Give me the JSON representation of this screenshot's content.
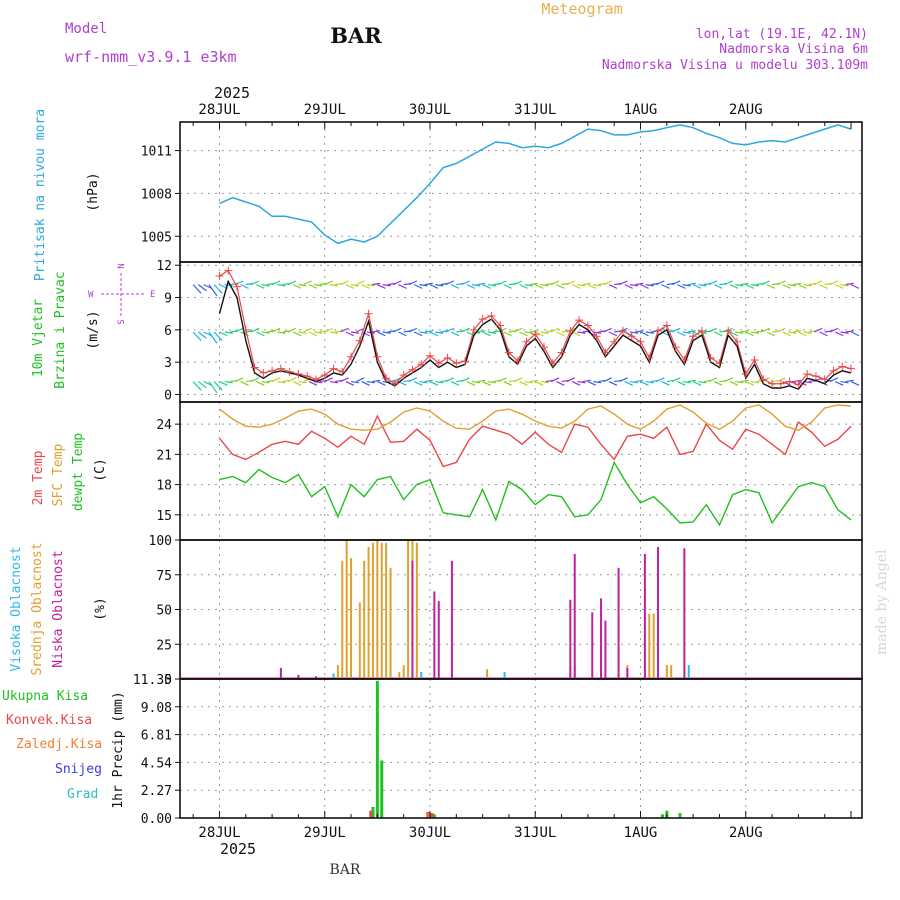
{
  "header": {
    "model_label": "Model",
    "model_name": "wrf-nmm_v3.9.1  e3km",
    "title": "BAR",
    "subtitle": "Meteogram",
    "coords": "lon,lat (19.1E, 42.1N)",
    "altitude": "Nadmorska Visina 6m",
    "model_altitude": "Nadmorska Visina u modelu 303.109m",
    "footer": "BAR",
    "watermark": "made by Angel"
  },
  "time_axis": {
    "year": "2025",
    "labels": [
      "28JUL",
      "29JUL",
      "30JUL",
      "31JUL",
      "1AUG",
      "2AUG"
    ]
  },
  "colors": {
    "pressure": "#2aa8e0",
    "wind_label": "#20c020",
    "wind_label2": "#20c020",
    "temp2m": "#e84848",
    "sfc_temp": "#e0a030",
    "dewpt": "#20c020",
    "cloud_high": "#30b8e8",
    "cloud_mid": "#e0a030",
    "cloud_low": "#c020a0",
    "precip_total": "#20c020",
    "precip_conv": "#e84848",
    "precip_frozen": "#f08030",
    "snow": "#4040e0",
    "graupel": "#30c0c0",
    "header_purple": "#b040d0",
    "subtitle": "#e8b050"
  },
  "panels": {
    "pressure": {
      "label": "Pritisak na nivou mora",
      "unit": "(hPa)"
    },
    "wind": {
      "label1": "10m Vjetar",
      "label2": "Brzina i Pravac",
      "unit": "(m/s)",
      "compass": {
        "n": "N",
        "e": "E",
        "s": "S",
        "w": "W"
      }
    },
    "temp": {
      "label1": "2m Temp",
      "label2": "SFC Temp",
      "label3": "dewpt Temp",
      "unit": "(C)"
    },
    "cloud": {
      "label1": "Visoka Oblacnost",
      "label2": "Srednja Oblacnost",
      "label3": "Niska Oblacnost",
      "unit": "(%)"
    },
    "precip": {
      "label1": "Ukupna Kisa",
      "label2": "Konvek.Kisa",
      "label3": "Zaledj.Kisa",
      "label4": "Snijeg",
      "label5": "Grad",
      "unit": "1hr Precip (mm)"
    }
  },
  "chart_data": [
    {
      "type": "line",
      "name": "pressure",
      "title": "Pritisak na nivou mora",
      "ylabel": "(hPa)",
      "ylim": [
        1003.2,
        1013.0
      ],
      "yticks": [
        1005,
        1008,
        1011
      ],
      "x_hours": [
        0,
        3,
        6,
        9,
        12,
        15,
        18,
        21,
        24,
        27,
        30,
        33,
        36,
        39,
        42,
        45,
        48,
        51,
        54,
        57,
        60,
        63,
        66,
        69,
        72,
        75,
        78,
        81,
        84,
        87,
        90,
        93,
        96,
        99,
        102,
        105,
        108,
        111,
        114,
        117,
        120,
        123,
        126,
        129,
        132,
        135,
        138,
        141,
        144
      ],
      "values": [
        1007.3,
        1007.7,
        1007.4,
        1007.1,
        1006.4,
        1006.4,
        1006.2,
        1006.0,
        1005.1,
        1004.5,
        1004.8,
        1004.6,
        1005.0,
        1005.9,
        1006.8,
        1007.7,
        1008.7,
        1009.8,
        1010.1,
        1010.6,
        1011.1,
        1011.6,
        1011.5,
        1011.2,
        1011.3,
        1011.2,
        1011.5,
        1012.0,
        1012.5,
        1012.4,
        1012.1,
        1012.1,
        1012.3,
        1012.4,
        1012.6,
        1012.8,
        1012.6,
        1012.2,
        1011.9,
        1011.5,
        1011.4,
        1011.6,
        1011.7,
        1011.6,
        1011.9,
        1012.2,
        1012.5,
        1012.8,
        1012.5
      ]
    },
    {
      "type": "line",
      "name": "wind",
      "title": "10m Vjetar Brzina i Pravac",
      "ylabel": "(m/s)",
      "ylim": [
        -0.7,
        12.3
      ],
      "yticks": [
        0,
        3,
        6,
        9,
        12
      ],
      "x_hours": [
        0,
        2,
        4,
        6,
        8,
        10,
        12,
        14,
        16,
        18,
        20,
        22,
        24,
        26,
        28,
        30,
        32,
        34,
        36,
        38,
        40,
        42,
        44,
        46,
        48,
        50,
        52,
        54,
        56,
        58,
        60,
        62,
        64,
        66,
        68,
        70,
        72,
        74,
        76,
        78,
        80,
        82,
        84,
        86,
        88,
        90,
        92,
        94,
        96,
        98,
        100,
        102,
        104,
        106,
        108,
        110,
        112,
        114,
        116,
        118,
        120,
        122,
        124,
        126,
        128,
        130,
        132,
        134,
        136,
        138,
        140,
        142,
        144
      ],
      "series": [
        {
          "name": "speed",
          "values": [
            7.5,
            10.5,
            9.0,
            5.0,
            2.0,
            1.5,
            2.0,
            2.2,
            2.0,
            1.8,
            1.5,
            1.2,
            1.5,
            2.0,
            1.8,
            2.8,
            4.5,
            6.8,
            3.0,
            1.2,
            0.8,
            1.5,
            2.0,
            2.5,
            3.2,
            2.5,
            3.0,
            2.5,
            2.8,
            5.5,
            6.5,
            7.0,
            6.0,
            3.5,
            2.8,
            4.5,
            5.2,
            4.0,
            2.5,
            3.5,
            5.5,
            6.5,
            6.0,
            5.0,
            3.5,
            4.5,
            5.5,
            5.0,
            4.5,
            3.0,
            5.5,
            6.0,
            4.0,
            2.8,
            5.0,
            5.5,
            3.0,
            2.5,
            5.5,
            4.5,
            1.5,
            2.8,
            1.0,
            0.6,
            0.6,
            0.8,
            0.5,
            1.5,
            1.3,
            1.0,
            1.8,
            2.2,
            2.0
          ]
        },
        {
          "name": "gust",
          "values": [
            11.0,
            11.5,
            10.0,
            6.0,
            2.5,
            2.0,
            2.2,
            2.4,
            2.1,
            1.9,
            1.7,
            1.4,
            1.8,
            2.4,
            2.1,
            3.5,
            5.0,
            7.5,
            3.5,
            1.5,
            1.0,
            1.8,
            2.3,
            2.8,
            3.6,
            2.9,
            3.4,
            2.9,
            3.1,
            6.0,
            7.0,
            7.3,
            6.4,
            3.9,
            3.1,
            4.9,
            5.6,
            4.4,
            2.9,
            3.9,
            5.9,
            6.9,
            6.4,
            5.4,
            3.9,
            4.9,
            5.9,
            5.4,
            4.9,
            3.4,
            5.9,
            6.4,
            4.4,
            3.2,
            5.4,
            5.9,
            3.4,
            2.9,
            5.9,
            4.9,
            1.9,
            3.2,
            1.4,
            1.0,
            1.0,
            1.2,
            0.9,
            1.9,
            1.7,
            1.4,
            2.2,
            2.6,
            2.4
          ]
        }
      ]
    },
    {
      "type": "line",
      "name": "temperature",
      "title": "2m Temp / SFC Temp / dewpt Temp",
      "ylabel": "(C)",
      "ylim": [
        12.5,
        26.2
      ],
      "yticks": [
        15,
        18,
        21,
        24
      ],
      "x_hours": [
        0,
        3,
        6,
        9,
        12,
        15,
        18,
        21,
        24,
        27,
        30,
        33,
        36,
        39,
        42,
        45,
        48,
        51,
        54,
        57,
        60,
        63,
        66,
        69,
        72,
        75,
        78,
        81,
        84,
        87,
        90,
        93,
        96,
        99,
        102,
        105,
        108,
        111,
        114,
        117,
        120,
        123,
        126,
        129,
        132,
        135,
        138,
        141,
        144
      ],
      "series": [
        {
          "name": "2m Temp",
          "values": [
            22.6,
            21.0,
            20.5,
            21.2,
            22.0,
            22.3,
            22.0,
            23.3,
            22.6,
            21.7,
            22.8,
            22.0,
            24.8,
            22.2,
            22.3,
            23.5,
            22.4,
            19.8,
            20.2,
            22.5,
            23.8,
            23.4,
            23.0,
            22.0,
            23.2,
            22.0,
            21.2,
            24.0,
            23.7,
            22.0,
            20.5,
            22.8,
            23.0,
            22.6,
            23.7,
            21.0,
            21.3,
            24.0,
            22.4,
            21.5,
            23.5,
            23.0,
            22.0,
            21.0,
            24.2,
            23.2,
            21.8,
            22.5,
            23.8
          ]
        },
        {
          "name": "SFC Temp",
          "values": [
            25.5,
            24.5,
            23.8,
            23.7,
            24.0,
            24.6,
            25.3,
            25.5,
            25.0,
            24.0,
            23.5,
            23.4,
            23.5,
            24.2,
            25.2,
            25.6,
            25.3,
            24.3,
            23.6,
            23.5,
            24.3,
            25.3,
            25.5,
            25.0,
            24.3,
            23.8,
            23.6,
            24.3,
            25.5,
            25.8,
            25.0,
            24.0,
            23.5,
            24.3,
            25.5,
            25.9,
            25.2,
            24.1,
            23.5,
            24.3,
            25.6,
            25.9,
            25.0,
            23.8,
            23.4,
            24.2,
            25.6,
            25.9,
            25.8
          ]
        },
        {
          "name": "dewpt Temp",
          "values": [
            18.5,
            18.8,
            18.2,
            19.5,
            18.7,
            18.2,
            19.0,
            16.8,
            17.8,
            14.8,
            18.0,
            16.8,
            18.5,
            18.8,
            16.5,
            18.0,
            18.5,
            15.2,
            15.0,
            14.8,
            17.5,
            14.5,
            18.3,
            17.5,
            16.0,
            17.0,
            16.8,
            14.8,
            15.0,
            16.5,
            20.2,
            18.0,
            16.2,
            16.8,
            15.6,
            14.2,
            14.3,
            16.0,
            14.0,
            17.0,
            17.5,
            17.2,
            14.2,
            16.0,
            17.8,
            18.2,
            17.8,
            15.5,
            14.5
          ]
        }
      ]
    },
    {
      "type": "bar",
      "name": "cloud",
      "title": "Visoka / Srednja / Niska Oblacnost",
      "ylabel": "(%)",
      "ylim": [
        0,
        100
      ],
      "yticks": [
        0,
        25,
        50,
        75,
        100
      ],
      "series": [
        {
          "name": "Srednja Oblacnost",
          "bars": [
            [
              27,
              10
            ],
            [
              28,
              85
            ],
            [
              29,
              100
            ],
            [
              30,
              87
            ],
            [
              32,
              55
            ],
            [
              33,
              85
            ],
            [
              34,
              95
            ],
            [
              35,
              98
            ],
            [
              36,
              100
            ],
            [
              37,
              98
            ],
            [
              38,
              98
            ],
            [
              39,
              80
            ],
            [
              41,
              5
            ],
            [
              42,
              10
            ],
            [
              43,
              100
            ],
            [
              44,
              100
            ],
            [
              45,
              98
            ],
            [
              61,
              7
            ],
            [
              80,
              10
            ],
            [
              81,
              10
            ],
            [
              93,
              10
            ],
            [
              98,
              47
            ],
            [
              99,
              47
            ],
            [
              102,
              10
            ],
            [
              103,
              10
            ]
          ]
        },
        {
          "name": "Niska Oblacnost",
          "bars": [
            [
              14,
              8
            ],
            [
              18,
              3
            ],
            [
              22,
              2
            ],
            [
              44,
              85
            ],
            [
              49,
              63
            ],
            [
              50,
              56
            ],
            [
              53,
              85
            ],
            [
              80,
              57
            ],
            [
              81,
              90
            ],
            [
              85,
              48
            ],
            [
              87,
              58
            ],
            [
              88,
              42
            ],
            [
              91,
              80
            ],
            [
              93,
              8
            ],
            [
              97,
              90
            ],
            [
              100,
              95
            ],
            [
              106,
              94
            ]
          ]
        },
        {
          "name": "Visoka Oblacnost",
          "bars": [
            [
              26,
              4
            ],
            [
              46,
              5
            ],
            [
              65,
              5
            ],
            [
              107,
              10
            ]
          ]
        }
      ]
    },
    {
      "type": "bar",
      "name": "precip",
      "title": "1hr Precip",
      "ylabel": "1hr Precip (mm)",
      "ylim": [
        0,
        11.35
      ],
      "yticks": [
        0,
        2.27,
        4.54,
        6.81,
        9.08,
        11.35
      ],
      "series": [
        {
          "name": "Ukupna Kisa",
          "bars": [
            [
              35,
              0.9
            ],
            [
              36,
              11.2
            ],
            [
              37,
              4.7
            ],
            [
              48,
              0.4
            ],
            [
              49,
              0.3
            ],
            [
              101,
              0.3
            ],
            [
              102,
              0.6
            ],
            [
              105,
              0.4
            ]
          ]
        },
        {
          "name": "Konvek.Kisa",
          "bars": [
            [
              34.5,
              0.6
            ],
            [
              47.5,
              0.5
            ],
            [
              48.5,
              0.4
            ]
          ]
        },
        {
          "name": "Zaledj.Kisa",
          "bars": [
            [
              47.8,
              0.4
            ]
          ]
        }
      ]
    }
  ]
}
